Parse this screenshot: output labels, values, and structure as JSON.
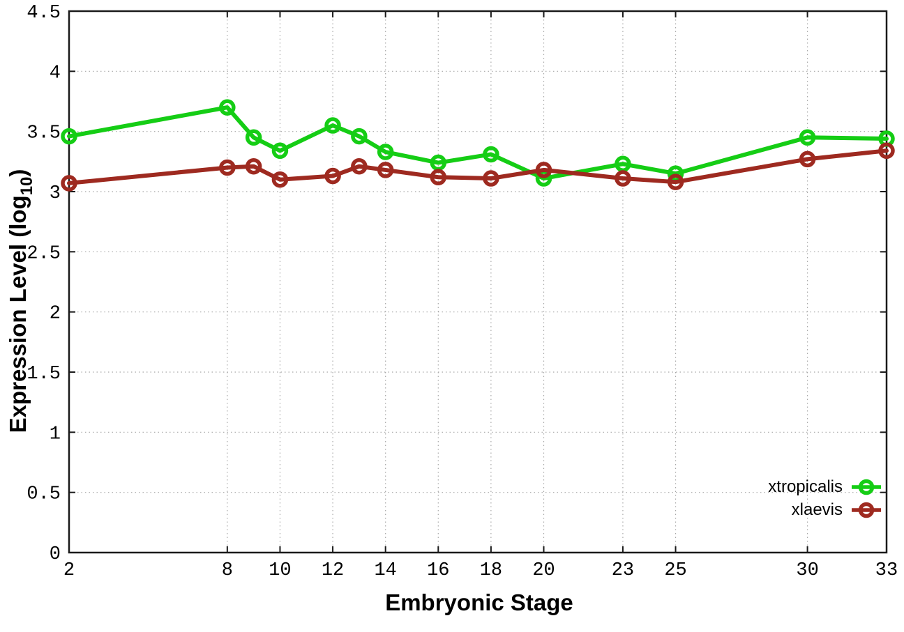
{
  "chart_data": {
    "type": "line",
    "title": "",
    "xlabel": "Embryonic Stage",
    "ylabel": {
      "prefix": "Expression Level (log",
      "subscript": "10",
      "suffix": ")"
    },
    "xlim": [
      2,
      33
    ],
    "ylim": [
      0,
      4.5
    ],
    "xtick_values": [
      2,
      8,
      10,
      12,
      14,
      16,
      18,
      20,
      23,
      25,
      30,
      33
    ],
    "xtick_labels": [
      "2",
      "8",
      "10",
      "12",
      "14",
      "16",
      "18",
      "20",
      "23",
      "25",
      "30",
      "33"
    ],
    "ytick_values": [
      0,
      0.5,
      1,
      1.5,
      2,
      2.5,
      3,
      3.5,
      4,
      4.5
    ],
    "ytick_labels": [
      "0",
      "0.5",
      "1",
      "1.5",
      "2",
      "2.5",
      "3",
      "3.5",
      "4",
      "4.5"
    ],
    "grid": true,
    "legend_position": "bottom-right-inside",
    "marker": "open-circle",
    "x": [
      2,
      8,
      9,
      10,
      12,
      13,
      14,
      16,
      18,
      20,
      23,
      25,
      30,
      33
    ],
    "series": [
      {
        "name": "xtropicalis",
        "color": "#15CD15",
        "values": [
          3.46,
          3.7,
          3.45,
          3.34,
          3.55,
          3.46,
          3.33,
          3.24,
          3.31,
          3.11,
          3.23,
          3.15,
          3.45,
          3.44
        ]
      },
      {
        "name": "xlaevis",
        "color": "#9E2A20",
        "values": [
          3.07,
          3.2,
          3.21,
          3.1,
          3.13,
          3.21,
          3.18,
          3.12,
          3.11,
          3.18,
          3.11,
          3.08,
          3.27,
          3.34
        ]
      }
    ],
    "colors": {
      "background": "#ffffff",
      "axis": "#1a1a1a",
      "grid": "#a8a8a8",
      "text": "#000000"
    }
  }
}
